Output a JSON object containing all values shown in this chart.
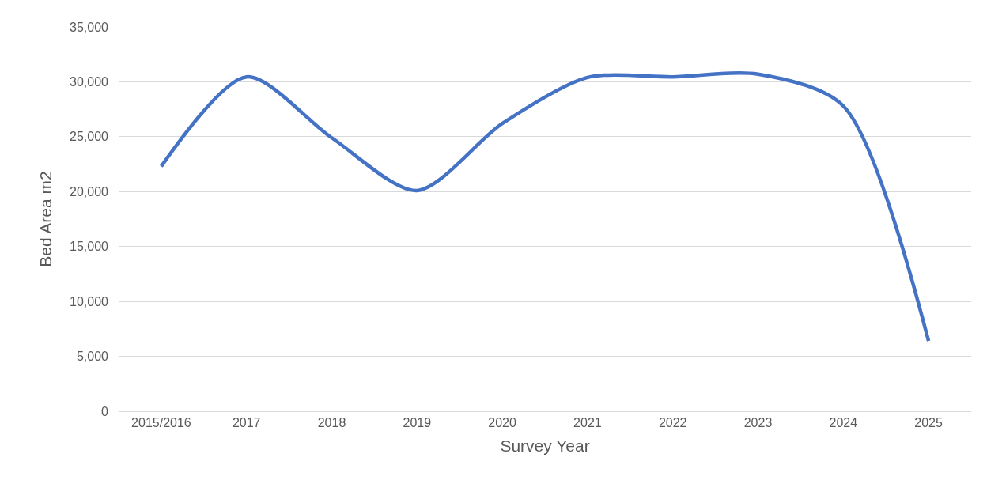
{
  "chart_data": {
    "type": "line",
    "xlabel": "Survey Year",
    "ylabel": "Bed Area m2",
    "categories": [
      "2015/2016",
      "2017",
      "2018",
      "2019",
      "2020",
      "2021",
      "2022",
      "2023",
      "2024",
      "2025"
    ],
    "series": [
      {
        "color": "#4472c4",
        "values": [
          22300,
          30450,
          24900,
          20100,
          26200,
          30400,
          30450,
          30700,
          27800,
          6400
        ]
      }
    ],
    "ylim": [
      0,
      35000
    ],
    "yticks": [
      {
        "value": 0,
        "label": "0"
      },
      {
        "value": 5000,
        "label": "5,000"
      },
      {
        "value": 10000,
        "label": "10,000"
      },
      {
        "value": 15000,
        "label": "15,000"
      },
      {
        "value": 20000,
        "label": "20,000"
      },
      {
        "value": 25000,
        "label": "25,000"
      },
      {
        "value": 30000,
        "label": "30,000"
      },
      {
        "value": 35000,
        "label": "35,000"
      }
    ],
    "grid": "y",
    "marker": "none",
    "line_style": "solid"
  }
}
